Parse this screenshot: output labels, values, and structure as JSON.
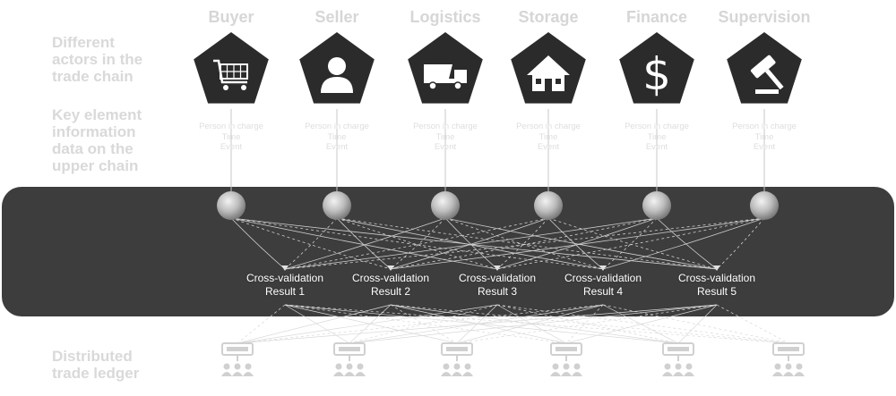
{
  "diagram": {
    "labels": {
      "actors": "Different\nactors in the\ntrade chain",
      "key_info": "Key element\ninformation\ndata on the\nupper chain",
      "ledger": "Distributed\ntrade ledger"
    },
    "actors": [
      {
        "name": "Buyer",
        "icon": "shopping-cart-icon"
      },
      {
        "name": "Seller",
        "icon": "person-icon"
      },
      {
        "name": "Logistics",
        "icon": "dump-truck-icon"
      },
      {
        "name": "Storage",
        "icon": "house-icon"
      },
      {
        "name": "Finance",
        "icon": "dollar-sign-icon"
      },
      {
        "name": "Supervision",
        "icon": "gavel-icon"
      }
    ],
    "actor_info": {
      "person": "Person in charge",
      "time": "Time",
      "event": "Event"
    },
    "results": [
      {
        "line1": "Cross-validation",
        "line2": "Result 1"
      },
      {
        "line1": "Cross-validation",
        "line2": "Result 2"
      },
      {
        "line1": "Cross-validation",
        "line2": "Result 3"
      },
      {
        "line1": "Cross-validation",
        "line2": "Result 4"
      },
      {
        "line1": "Cross-validation",
        "line2": "Result 5"
      }
    ],
    "ledger_nodes": 6,
    "colors": {
      "pentagon": "#2b2b2b",
      "band": "#3d3d3d",
      "muted_text": "#d9d9d9",
      "node_gray": "#d0d0d0"
    }
  }
}
